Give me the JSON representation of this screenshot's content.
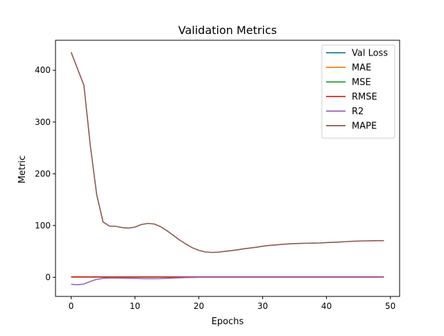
{
  "chart_data": {
    "type": "line",
    "title": "Validation Metrics",
    "xlabel": "Epochs",
    "ylabel": "Metric",
    "xlim": [
      -2.45,
      51.45
    ],
    "ylim": [
      -37,
      458
    ],
    "xticks": [
      0,
      10,
      20,
      30,
      40,
      50
    ],
    "yticks": [
      0,
      100,
      200,
      300,
      400
    ],
    "grid": false,
    "legend_position": "top-right",
    "x": [
      0,
      1,
      2,
      3,
      4,
      5,
      6,
      7,
      8,
      9,
      10,
      11,
      12,
      13,
      14,
      15,
      16,
      17,
      18,
      19,
      20,
      21,
      22,
      23,
      24,
      25,
      26,
      27,
      28,
      29,
      30,
      31,
      32,
      33,
      34,
      35,
      36,
      37,
      38,
      39,
      40,
      41,
      42,
      43,
      44,
      45,
      46,
      47,
      48,
      49
    ],
    "series": [
      {
        "name": "Val Loss",
        "color": "#1f77b4",
        "values": [
          0.5,
          0.4,
          0.4,
          0.4,
          0.4,
          0.3,
          0.3,
          0.3,
          0.3,
          0.3,
          0.3,
          0.3,
          0.3,
          0.3,
          0.3,
          0.3,
          0.3,
          0.3,
          0.3,
          0.3,
          0.3,
          0.3,
          0.3,
          0.3,
          0.3,
          0.3,
          0.3,
          0.3,
          0.3,
          0.3,
          0.3,
          0.3,
          0.3,
          0.3,
          0.3,
          0.3,
          0.3,
          0.3,
          0.3,
          0.3,
          0.3,
          0.3,
          0.3,
          0.3,
          0.3,
          0.3,
          0.3,
          0.3,
          0.3,
          0.3
        ]
      },
      {
        "name": "MAE",
        "color": "#ff7f0e",
        "values": [
          0.6,
          0.5,
          0.5,
          0.5,
          0.5,
          0.4,
          0.4,
          0.4,
          0.4,
          0.4,
          0.4,
          0.4,
          0.4,
          0.4,
          0.4,
          0.4,
          0.4,
          0.4,
          0.4,
          0.4,
          0.4,
          0.4,
          0.4,
          0.4,
          0.4,
          0.4,
          0.4,
          0.4,
          0.4,
          0.4,
          0.4,
          0.4,
          0.4,
          0.4,
          0.4,
          0.4,
          0.4,
          0.4,
          0.4,
          0.4,
          0.4,
          0.4,
          0.4,
          0.4,
          0.4,
          0.4,
          0.4,
          0.4,
          0.4,
          0.4
        ]
      },
      {
        "name": "MSE",
        "color": "#2ca02c",
        "values": [
          0.5,
          0.4,
          0.4,
          0.4,
          0.4,
          0.3,
          0.3,
          0.3,
          0.3,
          0.3,
          0.3,
          0.3,
          0.3,
          0.3,
          0.3,
          0.3,
          0.3,
          0.3,
          0.3,
          0.3,
          0.3,
          0.3,
          0.3,
          0.3,
          0.3,
          0.3,
          0.3,
          0.3,
          0.3,
          0.3,
          0.3,
          0.3,
          0.3,
          0.3,
          0.3,
          0.3,
          0.3,
          0.3,
          0.3,
          0.3,
          0.3,
          0.3,
          0.3,
          0.3,
          0.3,
          0.3,
          0.3,
          0.3,
          0.3,
          0.3
        ]
      },
      {
        "name": "RMSE",
        "color": "#d62728",
        "values": [
          0.7,
          0.7,
          0.6,
          0.6,
          0.6,
          0.6,
          0.6,
          0.6,
          0.6,
          0.6,
          0.6,
          0.6,
          0.6,
          0.6,
          0.6,
          0.6,
          0.6,
          0.6,
          0.6,
          0.6,
          0.6,
          0.6,
          0.6,
          0.6,
          0.6,
          0.6,
          0.6,
          0.6,
          0.6,
          0.6,
          0.6,
          0.6,
          0.6,
          0.6,
          0.6,
          0.6,
          0.6,
          0.6,
          0.6,
          0.6,
          0.6,
          0.6,
          0.6,
          0.6,
          0.6,
          0.6,
          0.6,
          0.6,
          0.6,
          0.6
        ]
      },
      {
        "name": "R2",
        "color": "#9467bd",
        "values": [
          -13.5,
          -14.5,
          -13.0,
          -8.0,
          -4.0,
          -2.0,
          -1.5,
          -1.5,
          -1.8,
          -2.0,
          -2.2,
          -2.5,
          -2.7,
          -2.7,
          -2.5,
          -2.0,
          -1.5,
          -1.0,
          -0.6,
          -0.3,
          0,
          0,
          0,
          0,
          0,
          0,
          0,
          0,
          0,
          0,
          0,
          0,
          0,
          0,
          0,
          0,
          0,
          0,
          0,
          0,
          0,
          0,
          0,
          0,
          0,
          0,
          0,
          0,
          0,
          0
        ]
      },
      {
        "name": "MAPE",
        "color": "#8c564b",
        "values": [
          435,
          403,
          371,
          255,
          160,
          107,
          99,
          98.5,
          96,
          95,
          97,
          102,
          104,
          103,
          98,
          90,
          81,
          72,
          64,
          57,
          52,
          49,
          48,
          48.5,
          50,
          51.5,
          53,
          55,
          56.5,
          58,
          60,
          61.5,
          62.5,
          63.5,
          64.5,
          65,
          65.5,
          65.8,
          66,
          66.3,
          67,
          67.5,
          68,
          68.8,
          69.5,
          70,
          70.3,
          70.5,
          70.7,
          70.8
        ]
      }
    ]
  }
}
